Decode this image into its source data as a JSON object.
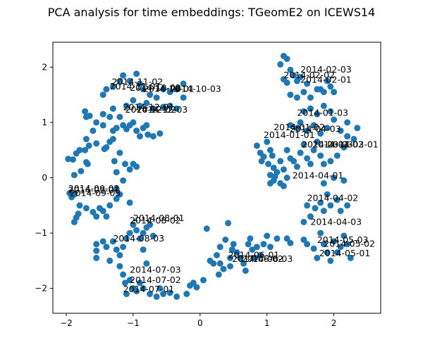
{
  "chart_data": {
    "type": "scatter",
    "title": "PCA analysis for time embeddings: TGeomE2 on ICEWS14",
    "xlabel": "",
    "ylabel": "",
    "xlim": [
      -2.2,
      2.7
    ],
    "ylim": [
      -2.45,
      2.45
    ],
    "x_ticks": [
      -2,
      -1,
      0,
      1,
      2
    ],
    "y_ticks": [
      -2,
      -1,
      0,
      1,
      2
    ],
    "grid": false,
    "marker_color": "#1f77b4",
    "annotations": [
      {
        "text": "2014-02-03",
        "x": 1.5,
        "y": 1.9
      },
      {
        "text": "2014-02-02",
        "x": 1.25,
        "y": 1.8
      },
      {
        "text": "2014-02-01",
        "x": 1.5,
        "y": 1.72
      },
      {
        "text": "2014-01-03",
        "x": 1.45,
        "y": 1.12
      },
      {
        "text": "2014-01-02",
        "x": 1.1,
        "y": 0.86
      },
      {
        "text": "2014-04-03",
        "x": 1.34,
        "y": 0.83
      },
      {
        "text": "2014-01-01",
        "x": 0.95,
        "y": 0.72
      },
      {
        "text": "2014-03-03",
        "x": 1.52,
        "y": 0.55
      },
      {
        "text": "2014-03-02",
        "x": 1.68,
        "y": 0.55
      },
      {
        "text": "2014-03-01",
        "x": 1.9,
        "y": 0.55
      },
      {
        "text": "2014-04-01",
        "x": 1.38,
        "y": -0.01
      },
      {
        "text": "2014-04-02",
        "x": 1.6,
        "y": -0.42
      },
      {
        "text": "2014-04-03",
        "x": 1.65,
        "y": -0.85
      },
      {
        "text": "2014-05-03",
        "x": 1.75,
        "y": -1.18
      },
      {
        "text": "2014-05-02",
        "x": 1.85,
        "y": -1.25
      },
      {
        "text": "2014-05-01",
        "x": 1.78,
        "y": -1.42
      },
      {
        "text": "2014-06-01",
        "x": 0.42,
        "y": -1.45
      },
      {
        "text": "2014-06-02",
        "x": 0.48,
        "y": -1.52
      },
      {
        "text": "2014-06-03",
        "x": 0.62,
        "y": -1.52
      },
      {
        "text": "2014-07-03",
        "x": -1.05,
        "y": -1.72
      },
      {
        "text": "2014-07-02",
        "x": -1.05,
        "y": -1.9
      },
      {
        "text": "2014-07-01",
        "x": -1.15,
        "y": -2.07
      },
      {
        "text": "2014-08-03",
        "x": -1.3,
        "y": -1.15
      },
      {
        "text": "2014-08-01",
        "x": -1.0,
        "y": -0.78
      },
      {
        "text": "2014-08-02",
        "x": -1.05,
        "y": -0.83
      },
      {
        "text": "2014-09-02",
        "x": -1.97,
        "y": -0.25
      },
      {
        "text": "2014-09-01",
        "x": -1.97,
        "y": -0.28
      },
      {
        "text": "2014-09-03",
        "x": -1.95,
        "y": -0.33
      },
      {
        "text": "2014-11-02",
        "x": -1.32,
        "y": 1.68
      },
      {
        "text": "2014-11-01",
        "x": -1.35,
        "y": 1.6
      },
      {
        "text": "2014-10-02",
        "x": -1.05,
        "y": 1.57
      },
      {
        "text": "2014-10-01",
        "x": -0.85,
        "y": 1.55
      },
      {
        "text": "2014-10-03",
        "x": -0.45,
        "y": 1.55
      },
      {
        "text": "2014-12-01",
        "x": -1.15,
        "y": 1.22
      },
      {
        "text": "2014-12-02",
        "x": -1.12,
        "y": 1.18
      },
      {
        "text": "2014-12-03",
        "x": -0.95,
        "y": 1.18
      }
    ],
    "points": [
      [
        -1.97,
        0.34
      ],
      [
        -1.9,
        0.33
      ],
      [
        -1.85,
        0.44
      ],
      [
        -1.8,
        0.5
      ],
      [
        -1.72,
        0.5
      ],
      [
        -1.68,
        0.25
      ],
      [
        -1.7,
        0.28
      ],
      [
        -1.78,
        0.12
      ],
      [
        -1.88,
        0.05
      ],
      [
        -1.7,
        0.7
      ],
      [
        -1.66,
        0.58
      ],
      [
        -1.6,
        0.85
      ],
      [
        -1.55,
        0.62
      ],
      [
        -1.45,
        0.95
      ],
      [
        -1.43,
        0.52
      ],
      [
        -1.4,
        0.55
      ],
      [
        -1.35,
        0.65
      ],
      [
        -1.3,
        0.7
      ],
      [
        -1.3,
        0.85
      ],
      [
        -1.25,
        0.9
      ],
      [
        -1.2,
        1.1
      ],
      [
        -1.15,
        0.95
      ],
      [
        -1.1,
        0.88
      ],
      [
        -1.05,
        0.95
      ],
      [
        -1.0,
        1.0
      ],
      [
        -0.95,
        0.85
      ],
      [
        -0.9,
        0.75
      ],
      [
        -0.85,
        0.9
      ],
      [
        -0.8,
        0.95
      ],
      [
        -0.78,
        0.78
      ],
      [
        -0.7,
        0.75
      ],
      [
        -0.6,
        0.8
      ],
      [
        -1.28,
        0.3
      ],
      [
        -1.2,
        0.45
      ],
      [
        -1.12,
        0.25
      ],
      [
        -1.05,
        0.15
      ],
      [
        -1.0,
        0.25
      ],
      [
        -0.95,
        0.2
      ],
      [
        -1.25,
        0.1
      ],
      [
        -1.7,
        1.1
      ],
      [
        -1.72,
        1.2
      ],
      [
        -1.65,
        1.12
      ],
      [
        -1.55,
        1.0
      ],
      [
        -1.45,
        1.15
      ],
      [
        -1.35,
        1.1
      ],
      [
        -1.3,
        1.25
      ],
      [
        -1.45,
        1.5
      ],
      [
        -1.4,
        1.6
      ],
      [
        -1.3,
        1.65
      ],
      [
        -1.2,
        1.75
      ],
      [
        -1.15,
        1.85
      ],
      [
        -1.05,
        1.75
      ],
      [
        -0.95,
        1.88
      ],
      [
        -0.9,
        1.7
      ],
      [
        -0.85,
        1.6
      ],
      [
        -0.75,
        1.5
      ],
      [
        -0.65,
        1.45
      ],
      [
        -0.55,
        1.6
      ],
      [
        -0.45,
        1.55
      ],
      [
        -0.35,
        1.6
      ],
      [
        -0.25,
        1.7
      ],
      [
        -0.25,
        1.45
      ],
      [
        -1.1,
        1.3
      ],
      [
        -1.0,
        1.4
      ],
      [
        -0.9,
        1.3
      ],
      [
        -0.8,
        1.35
      ],
      [
        -0.7,
        1.25
      ],
      [
        -0.55,
        1.28
      ],
      [
        -0.45,
        1.3
      ],
      [
        -0.35,
        1.25
      ],
      [
        -1.95,
        -0.28
      ],
      [
        -1.92,
        -0.35
      ],
      [
        -1.88,
        -0.3
      ],
      [
        -1.88,
        -0.8
      ],
      [
        -1.85,
        -0.72
      ],
      [
        -1.82,
        -0.65
      ],
      [
        -1.8,
        -0.5
      ],
      [
        -1.7,
        -0.55
      ],
      [
        -1.6,
        -0.62
      ],
      [
        -1.55,
        -0.7
      ],
      [
        -1.45,
        -0.6
      ],
      [
        -1.5,
        -0.55
      ],
      [
        -1.4,
        -0.7
      ],
      [
        -1.35,
        -0.5
      ],
      [
        -1.25,
        -0.38
      ],
      [
        -1.25,
        -0.2
      ],
      [
        -1.2,
        -0.3
      ],
      [
        -1.15,
        -0.05
      ],
      [
        -1.05,
        -0.45
      ],
      [
        -1.55,
        -1.2
      ],
      [
        -1.55,
        -1.32
      ],
      [
        -1.55,
        -1.45
      ],
      [
        -1.45,
        -1.15
      ],
      [
        -1.4,
        -1.25
      ],
      [
        -1.35,
        -1.5
      ],
      [
        -1.3,
        -1.15
      ],
      [
        -1.25,
        -1.3
      ],
      [
        -1.2,
        -1.4
      ],
      [
        -1.15,
        -1.25
      ],
      [
        -1.1,
        -1.1
      ],
      [
        -1.05,
        -1.0
      ],
      [
        -1.0,
        -0.85
      ],
      [
        -0.95,
        -0.95
      ],
      [
        -0.9,
        -1.1
      ],
      [
        -0.85,
        -1.0
      ],
      [
        -0.8,
        -0.9
      ],
      [
        -0.75,
        -0.85
      ],
      [
        -0.7,
        -1.05
      ],
      [
        -0.85,
        -1.3
      ],
      [
        -0.8,
        -1.55
      ],
      [
        -1.2,
        -1.6
      ],
      [
        -1.15,
        -1.75
      ],
      [
        -1.12,
        -1.9
      ],
      [
        -1.1,
        -2.1
      ],
      [
        -1.05,
        -1.85
      ],
      [
        -1.0,
        -2.0
      ],
      [
        -0.95,
        -2.05
      ],
      [
        -0.9,
        -1.9
      ],
      [
        -0.85,
        -2.0
      ],
      [
        -0.75,
        -2.1
      ],
      [
        -0.65,
        -2.15
      ],
      [
        -0.6,
        -2.0
      ],
      [
        -0.55,
        -2.1
      ],
      [
        -0.45,
        -2.08
      ],
      [
        -0.35,
        -2.15
      ],
      [
        -0.2,
        -2.1
      ],
      [
        -0.15,
        -1.95
      ],
      [
        -0.1,
        -1.9
      ],
      [
        -0.05,
        -1.98
      ],
      [
        0.05,
        -1.85
      ],
      [
        0.1,
        -0.92
      ],
      [
        0.15,
        -1.5
      ],
      [
        0.2,
        -1.55
      ],
      [
        0.25,
        -1.4
      ],
      [
        0.28,
        -1.75
      ],
      [
        0.3,
        -1.55
      ],
      [
        0.35,
        -1.65
      ],
      [
        0.3,
        -1.25
      ],
      [
        0.38,
        -1.12
      ],
      [
        0.42,
        -0.82
      ],
      [
        0.45,
        -1.6
      ],
      [
        0.45,
        -1.45
      ],
      [
        0.48,
        -1.3
      ],
      [
        0.5,
        -1.2
      ],
      [
        0.55,
        -1.35
      ],
      [
        0.6,
        -1.45
      ],
      [
        0.65,
        -1.55
      ],
      [
        0.68,
        -1.68
      ],
      [
        0.72,
        -1.2
      ],
      [
        0.75,
        -1.1
      ],
      [
        0.78,
        -1.3
      ],
      [
        0.82,
        -1.45
      ],
      [
        0.85,
        -1.25
      ],
      [
        0.9,
        -1.4
      ],
      [
        0.95,
        -1.2
      ],
      [
        1.0,
        -1.05
      ],
      [
        1.05,
        -1.25
      ],
      [
        1.15,
        -1.1
      ],
      [
        1.3,
        -1.1
      ],
      [
        1.35,
        -1.18
      ],
      [
        1.55,
        -1.12
      ],
      [
        1.6,
        -1.2
      ],
      [
        1.7,
        -1.28
      ],
      [
        1.75,
        -1.45
      ],
      [
        1.8,
        -1.0
      ],
      [
        1.85,
        -1.2
      ],
      [
        1.9,
        -1.35
      ],
      [
        1.95,
        -1.5
      ],
      [
        2.0,
        -1.15
      ],
      [
        2.05,
        -1.35
      ],
      [
        2.1,
        -1.25
      ],
      [
        2.15,
        -1.05
      ],
      [
        2.2,
        -1.2
      ],
      [
        2.25,
        -1.45
      ],
      [
        1.55,
        -0.8
      ],
      [
        1.6,
        -0.5
      ],
      [
        1.65,
        -0.7
      ],
      [
        1.72,
        -0.55
      ],
      [
        1.8,
        -0.45
      ],
      [
        1.85,
        -0.6
      ],
      [
        1.9,
        -0.3
      ],
      [
        1.95,
        -0.5
      ],
      [
        2.05,
        -0.4
      ],
      [
        2.1,
        -0.6
      ],
      [
        2.2,
        -0.5
      ],
      [
        1.85,
        -0.1
      ],
      [
        2.0,
        0.0
      ],
      [
        2.15,
        -0.05
      ],
      [
        0.85,
        0.58
      ],
      [
        0.9,
        0.45
      ],
      [
        0.92,
        0.3
      ],
      [
        0.95,
        0.38
      ],
      [
        1.0,
        0.65
      ],
      [
        1.02,
        0.25
      ],
      [
        1.05,
        0.5
      ],
      [
        1.08,
        0.4
      ],
      [
        1.1,
        0.18
      ],
      [
        1.12,
        0.02
      ],
      [
        1.15,
        0.1
      ],
      [
        1.2,
        0.3
      ],
      [
        1.25,
        0.15
      ],
      [
        1.3,
        0.0
      ],
      [
        1.3,
        0.5
      ],
      [
        1.35,
        0.35
      ],
      [
        1.4,
        0.3
      ],
      [
        1.45,
        0.2
      ],
      [
        1.5,
        0.45
      ],
      [
        1.55,
        0.6
      ],
      [
        1.6,
        0.35
      ],
      [
        1.65,
        0.25
      ],
      [
        1.7,
        0.5
      ],
      [
        1.75,
        0.65
      ],
      [
        1.8,
        0.4
      ],
      [
        1.85,
        0.25
      ],
      [
        1.95,
        0.3
      ],
      [
        2.05,
        0.4
      ],
      [
        2.15,
        0.55
      ],
      [
        2.2,
        0.75
      ],
      [
        2.3,
        0.7
      ],
      [
        2.35,
        0.9
      ],
      [
        1.05,
        -0.1
      ],
      [
        1.1,
        -0.05
      ],
      [
        1.2,
        -0.1
      ],
      [
        1.25,
        -0.15
      ],
      [
        1.05,
        0.05
      ],
      [
        1.35,
        0.95
      ],
      [
        1.45,
        0.9
      ],
      [
        1.5,
        1.0
      ],
      [
        1.6,
        0.85
      ],
      [
        1.7,
        0.95
      ],
      [
        1.8,
        0.8
      ],
      [
        1.9,
        0.9
      ],
      [
        2.0,
        1.05
      ],
      [
        2.1,
        0.85
      ],
      [
        2.2,
        1.0
      ],
      [
        1.55,
        1.2
      ],
      [
        1.65,
        1.25
      ],
      [
        1.75,
        1.15
      ],
      [
        1.85,
        1.3
      ],
      [
        1.95,
        1.2
      ],
      [
        1.35,
        1.5
      ],
      [
        1.45,
        1.45
      ],
      [
        1.55,
        1.55
      ],
      [
        1.65,
        1.45
      ],
      [
        1.75,
        1.6
      ],
      [
        1.85,
        1.55
      ],
      [
        1.9,
        1.75
      ],
      [
        1.95,
        1.65
      ],
      [
        2.0,
        1.55
      ],
      [
        1.5,
        1.82
      ],
      [
        1.45,
        1.75
      ],
      [
        1.3,
        1.72
      ],
      [
        1.25,
        1.78
      ],
      [
        1.35,
        1.95
      ],
      [
        1.2,
        2.05
      ],
      [
        1.25,
        2.2
      ],
      [
        1.3,
        2.15
      ],
      [
        1.4,
        1.85
      ],
      [
        1.6,
        1.7
      ],
      [
        1.8,
        1.6
      ]
    ]
  }
}
